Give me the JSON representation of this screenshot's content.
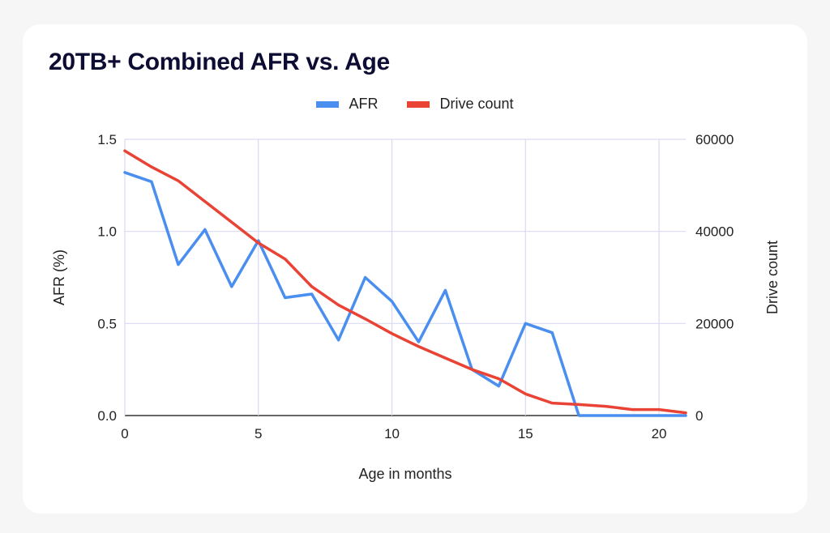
{
  "title": "20TB+ Combined AFR vs. Age",
  "chart_data": {
    "type": "line",
    "xlabel": "Age in months",
    "ylabel_left": "AFR (%)",
    "ylabel_right": "Drive count",
    "xlim": [
      0,
      21
    ],
    "ylim_left": [
      0,
      1.5
    ],
    "ylim_right": [
      0,
      60000
    ],
    "x_ticks": [
      "0",
      "5",
      "10",
      "15",
      "20"
    ],
    "y_left_ticks": [
      "0.0",
      "0.5",
      "1.0",
      "1.5"
    ],
    "y_right_ticks": [
      "0",
      "20000",
      "40000",
      "60000"
    ],
    "grid": true,
    "legend_position": "top-center",
    "x": [
      0,
      1,
      2,
      3,
      4,
      5,
      6,
      7,
      8,
      9,
      10,
      11,
      12,
      13,
      14,
      15,
      16,
      17,
      18,
      19,
      20,
      21
    ],
    "series": [
      {
        "name": "AFR",
        "axis": "left",
        "color": "#4a8ef0",
        "values": [
          1.32,
          1.27,
          0.82,
          1.01,
          0.7,
          0.95,
          0.64,
          0.66,
          0.41,
          0.75,
          0.62,
          0.4,
          0.68,
          0.25,
          0.16,
          0.5,
          0.45,
          0.0,
          0.0,
          0.0,
          0.0,
          0.0
        ]
      },
      {
        "name": "Drive count",
        "axis": "right",
        "color": "#e94335",
        "values": [
          57500,
          54000,
          51000,
          46500,
          42000,
          37500,
          34000,
          28000,
          24000,
          21000,
          17800,
          15000,
          12500,
          10000,
          8000,
          4700,
          2700,
          2400,
          2000,
          1300,
          1300,
          600
        ]
      }
    ]
  }
}
